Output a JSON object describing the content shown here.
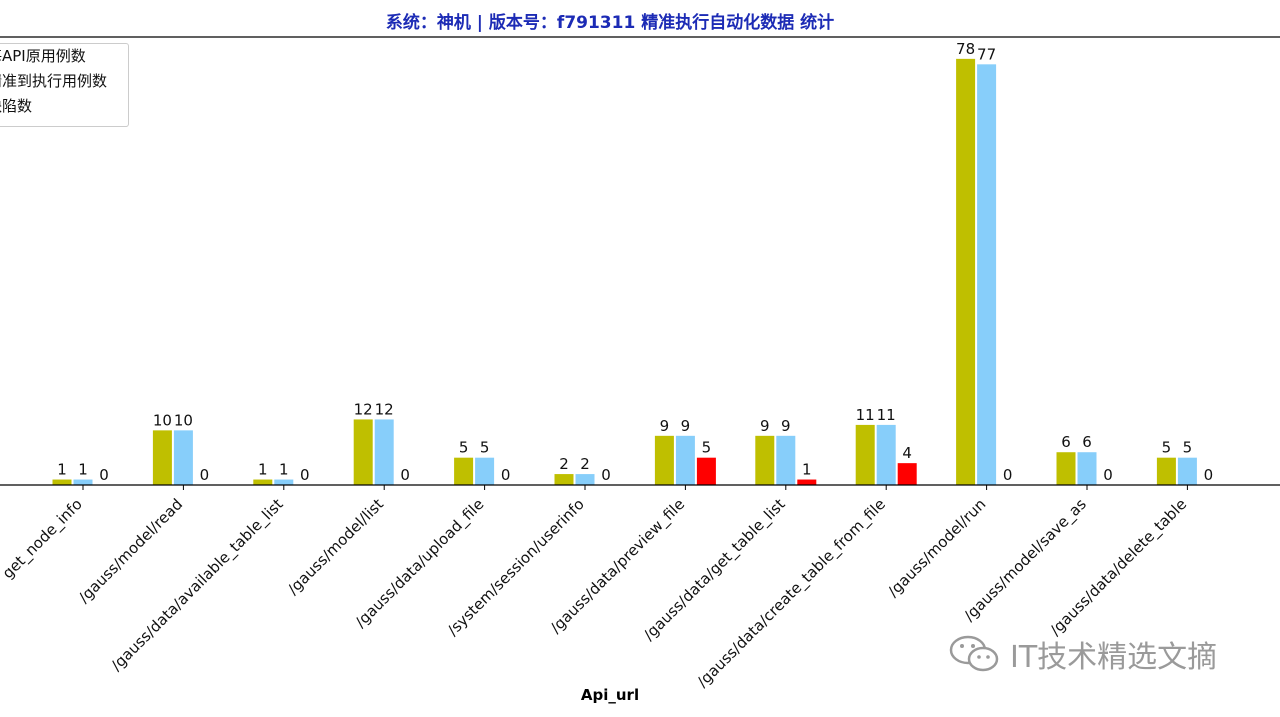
{
  "chart_data": {
    "type": "bar",
    "title": "系统：神机 | 版本号：f791311  精准执行自动化数据 统计",
    "xlabel": "Api_url",
    "ylabel": "",
    "ylim": [
      0,
      82
    ],
    "legend_position": "top-left",
    "categories": [
      "/gauss/node/get_node_info",
      "/gauss/model/read",
      "/gauss/data/available_table_list",
      "/gauss/model/list",
      "/gauss/data/upload_file",
      "/system/session/userinfo",
      "/gauss/data/preview_file",
      "/gauss/data/get_table_list",
      "/gauss/data/create_table_from_file",
      "/gauss/model/run",
      "/gauss/model/save_as",
      "/gauss/data/delete_table"
    ],
    "tick_labels": [
      "get_node_info",
      "/gauss/model/read",
      "/gauss/data/available_table_list",
      "/gauss/model/list",
      "/gauss/data/upload_file",
      "/system/session/userinfo",
      "/gauss/data/preview_file",
      "/gauss/data/get_table_list",
      "/gauss/data/create_table_from_file",
      "/gauss/model/run",
      "/gauss/model/save_as",
      "/gauss/data/delete_table"
    ],
    "series": [
      {
        "name": "每API原用例数",
        "color": "#bfbf00",
        "values": [
          1,
          10,
          1,
          12,
          5,
          2,
          9,
          9,
          11,
          78,
          6,
          5
        ]
      },
      {
        "name": "精准到执行用例数",
        "color": "#87cefa",
        "values": [
          1,
          10,
          1,
          12,
          5,
          2,
          9,
          9,
          11,
          77,
          6,
          5
        ]
      },
      {
        "name": "缺陷数",
        "color": "#ff0000",
        "values": [
          0,
          0,
          0,
          0,
          0,
          0,
          5,
          1,
          4,
          0,
          0,
          0
        ]
      }
    ],
    "legend_display": [
      "每API原用例数",
      "精准到执行用例数",
      "缺陷数"
    ]
  },
  "watermark": {
    "text": "IT技术精选文摘",
    "icon": "wechat-icon"
  }
}
